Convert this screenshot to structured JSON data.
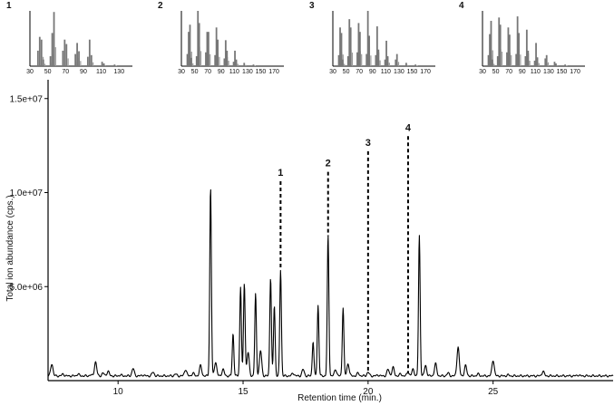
{
  "chart_data": [
    {
      "type": "line",
      "role": "chromatogram",
      "xlabel": "Retention time (min.)",
      "ylabel": "Total ion abundance (cps.)",
      "xlim": [
        7.2,
        29.8
      ],
      "ylim": [
        0,
        16000000
      ],
      "xticks": [
        10,
        15,
        20,
        25
      ],
      "xtick_labels": [
        "10",
        "15",
        "20",
        "25"
      ],
      "yticks": [
        5000000,
        10000000,
        15000000
      ],
      "ytick_labels": [
        "5.0e+06",
        "1.0e+07",
        "1.5e+07"
      ],
      "baseline": 250000,
      "peaks": [
        {
          "x": 7.35,
          "y": 900000
        },
        {
          "x": 7.8,
          "y": 350000
        },
        {
          "x": 8.4,
          "y": 350000
        },
        {
          "x": 8.9,
          "y": 300000
        },
        {
          "x": 9.1,
          "y": 1000000
        },
        {
          "x": 9.4,
          "y": 400000
        },
        {
          "x": 9.6,
          "y": 500000
        },
        {
          "x": 10.1,
          "y": 300000
        },
        {
          "x": 10.6,
          "y": 650000
        },
        {
          "x": 11.0,
          "y": 300000
        },
        {
          "x": 11.4,
          "y": 450000
        },
        {
          "x": 11.9,
          "y": 250000
        },
        {
          "x": 12.3,
          "y": 350000
        },
        {
          "x": 12.7,
          "y": 600000
        },
        {
          "x": 13.0,
          "y": 400000
        },
        {
          "x": 13.3,
          "y": 800000
        },
        {
          "x": 13.7,
          "y": 10300000
        },
        {
          "x": 13.9,
          "y": 1000000
        },
        {
          "x": 14.2,
          "y": 600000
        },
        {
          "x": 14.6,
          "y": 2500000
        },
        {
          "x": 14.9,
          "y": 5000000
        },
        {
          "x": 15.05,
          "y": 5200000
        },
        {
          "x": 15.2,
          "y": 1500000
        },
        {
          "x": 15.5,
          "y": 4600000
        },
        {
          "x": 15.7,
          "y": 1600000
        },
        {
          "x": 16.1,
          "y": 5500000
        },
        {
          "x": 16.25,
          "y": 4000000
        },
        {
          "x": 16.5,
          "y": 5900000
        },
        {
          "x": 17.0,
          "y": 400000
        },
        {
          "x": 17.4,
          "y": 600000
        },
        {
          "x": 17.8,
          "y": 2100000
        },
        {
          "x": 18.0,
          "y": 4000000
        },
        {
          "x": 18.4,
          "y": 7700000
        },
        {
          "x": 18.7,
          "y": 600000
        },
        {
          "x": 19.0,
          "y": 3900000
        },
        {
          "x": 19.2,
          "y": 900000
        },
        {
          "x": 19.6,
          "y": 400000
        },
        {
          "x": 20.0,
          "y": 450000
        },
        {
          "x": 20.4,
          "y": 300000
        },
        {
          "x": 20.8,
          "y": 600000
        },
        {
          "x": 21.0,
          "y": 700000
        },
        {
          "x": 21.3,
          "y": 350000
        },
        {
          "x": 21.6,
          "y": 450000
        },
        {
          "x": 21.8,
          "y": 600000
        },
        {
          "x": 22.05,
          "y": 7700000
        },
        {
          "x": 22.3,
          "y": 800000
        },
        {
          "x": 22.7,
          "y": 900000
        },
        {
          "x": 23.2,
          "y": 400000
        },
        {
          "x": 23.6,
          "y": 1800000
        },
        {
          "x": 23.9,
          "y": 800000
        },
        {
          "x": 24.4,
          "y": 350000
        },
        {
          "x": 25.0,
          "y": 1100000
        },
        {
          "x": 25.6,
          "y": 300000
        },
        {
          "x": 26.3,
          "y": 250000
        },
        {
          "x": 27.0,
          "y": 500000
        },
        {
          "x": 27.8,
          "y": 250000
        },
        {
          "x": 28.4,
          "y": 300000
        },
        {
          "x": 29.0,
          "y": 250000
        }
      ],
      "markers": [
        {
          "label": "1",
          "x": 16.5,
          "y_top": 10600000,
          "y_bottom": 5900000
        },
        {
          "label": "2",
          "x": 18.4,
          "y_top": 11100000,
          "y_bottom": 7700000
        },
        {
          "label": "3",
          "x": 20.0,
          "y_top": 12200000,
          "y_bottom": 400000
        },
        {
          "label": "4",
          "x": 21.6,
          "y_top": 13000000,
          "y_bottom": 400000
        }
      ]
    },
    {
      "type": "bar",
      "role": "mass-spectrum",
      "label": "1",
      "xlim": [
        30,
        145
      ],
      "xticks": [
        30,
        50,
        70,
        90,
        110,
        130
      ],
      "ylim": [
        0,
        100
      ],
      "bars": [
        [
          39,
          28
        ],
        [
          41,
          53
        ],
        [
          43,
          48
        ],
        [
          45,
          12
        ],
        [
          53,
          18
        ],
        [
          55,
          60
        ],
        [
          57,
          98
        ],
        [
          67,
          28
        ],
        [
          69,
          48
        ],
        [
          71,
          40
        ],
        [
          81,
          22
        ],
        [
          83,
          42
        ],
        [
          85,
          27
        ],
        [
          95,
          17
        ],
        [
          97,
          48
        ],
        [
          99,
          20
        ],
        [
          111,
          8
        ],
        [
          113,
          5
        ],
        [
          125,
          3
        ]
      ]
    },
    {
      "type": "bar",
      "role": "mass-spectrum",
      "label": "2",
      "xlim": [
        30,
        185
      ],
      "xticks": [
        30,
        50,
        70,
        90,
        110,
        130,
        150,
        170
      ],
      "ylim": [
        0,
        100
      ],
      "bars": [
        [
          39,
          22
        ],
        [
          41,
          62
        ],
        [
          43,
          75
        ],
        [
          45,
          15
        ],
        [
          53,
          18
        ],
        [
          55,
          100
        ],
        [
          57,
          78
        ],
        [
          67,
          25
        ],
        [
          69,
          62
        ],
        [
          71,
          62
        ],
        [
          81,
          20
        ],
        [
          83,
          70
        ],
        [
          85,
          48
        ],
        [
          95,
          14
        ],
        [
          97,
          47
        ],
        [
          99,
          28
        ],
        [
          109,
          8
        ],
        [
          111,
          28
        ],
        [
          113,
          12
        ],
        [
          125,
          6
        ],
        [
          139,
          3
        ]
      ]
    },
    {
      "type": "bar",
      "role": "mass-spectrum",
      "label": "3",
      "xlim": [
        30,
        185
      ],
      "xticks": [
        30,
        50,
        70,
        90,
        110,
        130,
        150,
        170
      ],
      "ylim": [
        0,
        100
      ],
      "bars": [
        [
          39,
          20
        ],
        [
          41,
          70
        ],
        [
          43,
          60
        ],
        [
          45,
          12
        ],
        [
          53,
          18
        ],
        [
          55,
          85
        ],
        [
          57,
          70
        ],
        [
          67,
          25
        ],
        [
          69,
          78
        ],
        [
          71,
          62
        ],
        [
          81,
          22
        ],
        [
          83,
          100
        ],
        [
          85,
          55
        ],
        [
          95,
          20
        ],
        [
          97,
          72
        ],
        [
          99,
          30
        ],
        [
          109,
          12
        ],
        [
          111,
          46
        ],
        [
          113,
          18
        ],
        [
          125,
          12
        ],
        [
          127,
          22
        ],
        [
          141,
          6
        ],
        [
          155,
          3
        ]
      ]
    },
    {
      "type": "bar",
      "role": "mass-spectrum",
      "label": "4",
      "xlim": [
        30,
        185
      ],
      "xticks": [
        30,
        50,
        70,
        90,
        110,
        130,
        150,
        170
      ],
      "ylim": [
        0,
        100
      ],
      "bars": [
        [
          39,
          20
        ],
        [
          41,
          58
        ],
        [
          43,
          82
        ],
        [
          45,
          12
        ],
        [
          53,
          18
        ],
        [
          55,
          88
        ],
        [
          57,
          75
        ],
        [
          67,
          25
        ],
        [
          69,
          70
        ],
        [
          71,
          57
        ],
        [
          81,
          22
        ],
        [
          83,
          90
        ],
        [
          85,
          60
        ],
        [
          95,
          18
        ],
        [
          97,
          66
        ],
        [
          99,
          28
        ],
        [
          109,
          10
        ],
        [
          111,
          42
        ],
        [
          113,
          16
        ],
        [
          125,
          14
        ],
        [
          127,
          20
        ],
        [
          139,
          8
        ],
        [
          141,
          5
        ],
        [
          155,
          3
        ]
      ]
    }
  ],
  "colors": {
    "axis": "#000000",
    "trace": "#000000",
    "spectrum_bar": "#777777"
  }
}
